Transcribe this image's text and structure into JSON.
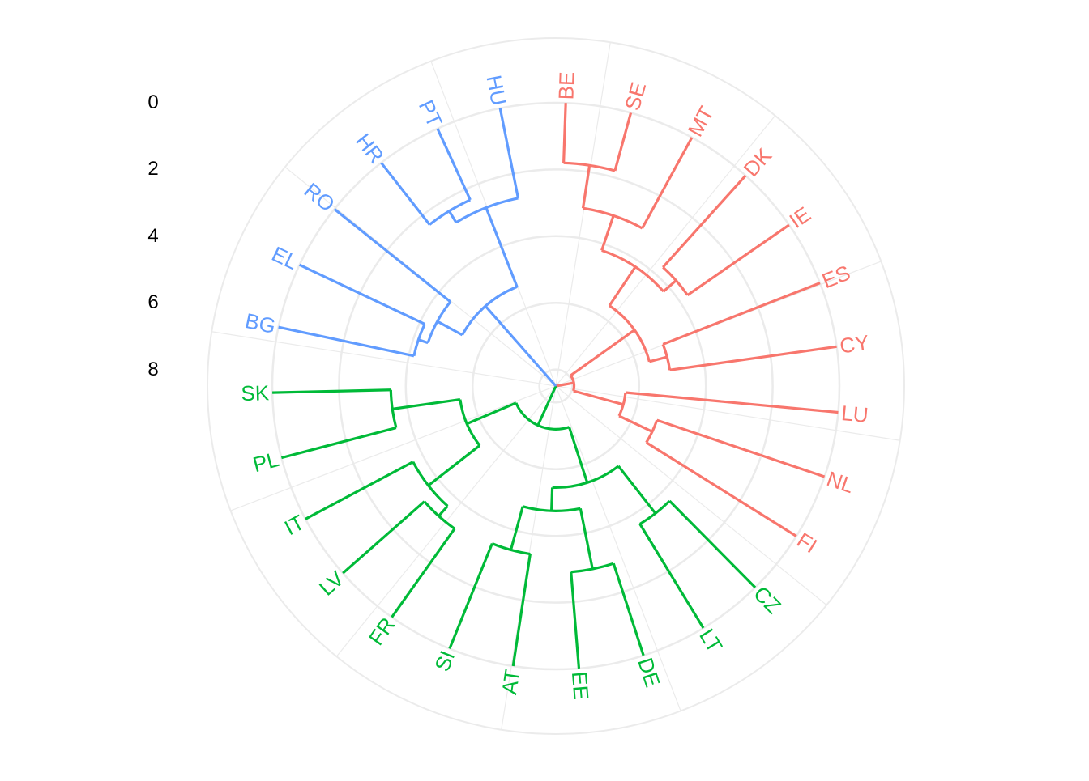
{
  "chart_data": {
    "type": "circular-dendrogram",
    "title": "",
    "y_axis_ticks": [
      "0",
      "2",
      "4",
      "6",
      "8"
    ],
    "grid": true,
    "colors": {
      "red": "#F8766D",
      "green": "#00BA38",
      "blue": "#619CFF",
      "root": "#000000",
      "grid": "#EBEBEB"
    },
    "leaves_order_clockwise": [
      "BE",
      "SE",
      "MT",
      "DK",
      "IE",
      "ES",
      "CY",
      "LU",
      "NL",
      "FI",
      "CZ",
      "LT",
      "DE",
      "EE",
      "AT",
      "SI",
      "FR",
      "LV",
      "IT",
      "PL",
      "SK",
      "BG",
      "EL",
      "RO",
      "HR",
      "PT",
      "HU"
    ],
    "clusters": [
      {
        "color": "red",
        "leaves": [
          "BE",
          "SE",
          "MT",
          "DK",
          "IE",
          "ES",
          "CY",
          "LU",
          "NL",
          "FI"
        ]
      },
      {
        "color": "green",
        "leaves": [
          "CZ",
          "LT",
          "DE",
          "EE",
          "AT",
          "SI",
          "FR",
          "LV",
          "IT",
          "PL",
          "SK"
        ]
      },
      {
        "color": "blue",
        "leaves": [
          "BG",
          "EL",
          "RO",
          "HR",
          "PT",
          "HU"
        ]
      }
    ],
    "tree": {
      "h": 10,
      "color": "black",
      "children": [
        {
          "h": 7.95,
          "color": "red",
          "children": [
            {
              "h": 5.6,
              "children": [
                {
                  "h": 4.2,
                  "children": [
                    {
                      "h": 3.1,
                      "children": [
                        {
                          "h": 1.8,
                          "children": [
                            {
                              "leaf": "BE"
                            },
                            {
                              "leaf": "SE"
                            }
                          ]
                        },
                        {
                          "leaf": "MT"
                        }
                      ]
                    },
                    {
                      "h": 3.7,
                      "children": [
                        {
                          "leaf": "DK"
                        },
                        {
                          "leaf": "IE"
                        }
                      ]
                    }
                  ]
                },
                {
                  "h": 5.05,
                  "children": [
                    {
                      "leaf": "ES"
                    },
                    {
                      "leaf": "CY"
                    }
                  ]
                }
              ]
            },
            {
              "h": 6.4,
              "children": [
                {
                  "leaf": "LU"
                },
                {
                  "h": 5.3,
                  "children": [
                    {
                      "leaf": "NL"
                    },
                    {
                      "leaf": "FI"
                    }
                  ]
                }
              ]
            }
          ]
        },
        {
          "h": 8.85,
          "children": [
            {
              "h": 7.2,
              "color": "green",
              "children": [
                {
                  "h": 5.45,
                  "children": [
                    {
                      "h": 3.65,
                      "children": [
                        {
                          "leaf": "CZ"
                        },
                        {
                          "leaf": "LT"
                        }
                      ]
                    },
                    {
                      "h": 4.75,
                      "children": [
                        {
                          "h": 2.9,
                          "children": [
                            {
                              "leaf": "DE"
                            },
                            {
                              "leaf": "EE"
                            }
                          ]
                        },
                        {
                          "h": 3.4,
                          "children": [
                            {
                              "leaf": "AT"
                            },
                            {
                              "leaf": "SI"
                            }
                          ]
                        }
                      ]
                    }
                  ]
                },
                {
                  "h": 5.6,
                  "children": [
                    {
                      "h": 3.65,
                      "children": [
                        {
                          "h": 3.25,
                          "children": [
                            {
                              "leaf": "FR"
                            },
                            {
                              "leaf": "LV"
                            }
                          ]
                        },
                        {
                          "leaf": "IT"
                        }
                      ]
                    },
                    {
                      "h": 3.55,
                      "children": [
                        {
                          "leaf": "PL"
                        },
                        {
                          "leaf": "SK"
                        }
                      ]
                    }
                  ]
                }
              ]
            },
            {
              "h": 5.3,
              "color": "blue",
              "children": [
                {
                  "h": 4.45,
                  "children": [
                    {
                      "h": 4.15,
                      "children": [
                        {
                          "leaf": "BG"
                        },
                        {
                          "leaf": "EL"
                        }
                      ]
                    },
                    {
                      "leaf": "RO"
                    }
                  ]
                },
                {
                  "h": 2.75,
                  "children": [
                    {
                      "h": 2.35,
                      "children": [
                        {
                          "leaf": "HR"
                        },
                        {
                          "leaf": "PT"
                        }
                      ]
                    },
                    {
                      "leaf": "HU"
                    }
                  ]
                }
              ]
            }
          ]
        }
      ]
    }
  }
}
